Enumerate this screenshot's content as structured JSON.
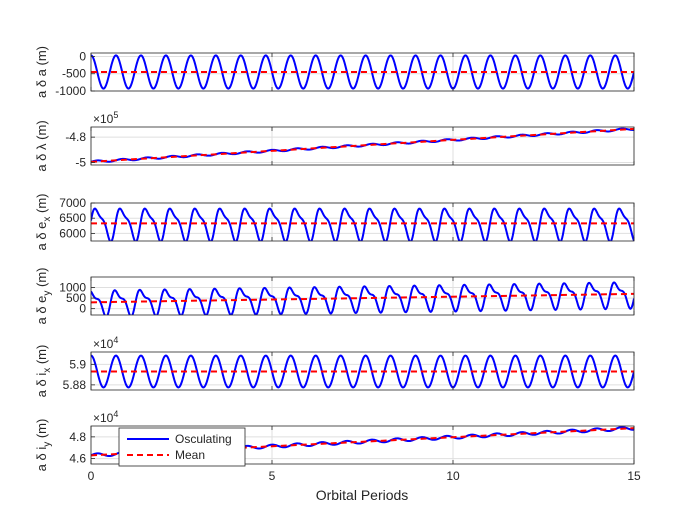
{
  "chart_data": {
    "type": "line",
    "xlabel": "Orbital Periods",
    "xlim": [
      0,
      15
    ],
    "xticks": [
      "0",
      "5",
      "10",
      "15"
    ],
    "grid": true,
    "legend": {
      "placement": "inside-lower-left of bottom panel",
      "entries": [
        {
          "name": "Osculating",
          "color": "#0000ff",
          "style": "solid"
        },
        {
          "name": "Mean",
          "color": "#ff0000",
          "style": "dashed"
        }
      ]
    },
    "panels": [
      {
        "ylabel_parts": [
          "a δ a",
          "",
          " (m)"
        ],
        "ylim": [
          -1000,
          100
        ],
        "yticks": [
          {
            "value": 0,
            "label": "0"
          },
          {
            "value": -500,
            "label": "-500"
          },
          {
            "value": -1000,
            "label": "-1000"
          }
        ],
        "exponent": "",
        "mean": {
          "start": -450,
          "end": -450
        },
        "osc": {
          "amplitude": 480,
          "periods_per_unit": 1.45,
          "second_amp": 0,
          "phase": 1.57
        }
      },
      {
        "ylabel_parts": [
          "a δ λ",
          "",
          " (m)"
        ],
        "ylim": [
          -5.02,
          -4.72
        ],
        "yticks": [
          {
            "value": -4.8,
            "label": "-4.8"
          },
          {
            "value": -5,
            "label": "-5"
          }
        ],
        "exponent": "5",
        "mean": {
          "start": -4.995,
          "end": -4.735
        },
        "osc": {
          "amplitude": 0.008,
          "periods_per_unit": 1.45,
          "second_amp": 0,
          "phase": 0
        }
      },
      {
        "ylabel_parts": [
          "a δ e",
          "x",
          " (m)"
        ],
        "ylim": [
          5750,
          7000
        ],
        "yticks": [
          {
            "value": 7000,
            "label": "7000"
          },
          {
            "value": 6500,
            "label": "6500"
          },
          {
            "value": 6000,
            "label": "6000"
          }
        ],
        "exponent": "",
        "mean": {
          "start": 6330,
          "end": 6330
        },
        "osc": {
          "amplitude": 480,
          "periods_per_unit": 1.45,
          "second_amp": 160,
          "phase": 0
        }
      },
      {
        "ylabel_parts": [
          "a δ e",
          "y",
          " (m)"
        ],
        "ylim": [
          -300,
          1500
        ],
        "yticks": [
          {
            "value": 1000,
            "label": "1000"
          },
          {
            "value": 500,
            "label": "500"
          },
          {
            "value": 0,
            "label": "0"
          }
        ],
        "exponent": "",
        "mean": {
          "start": 300,
          "end": 700
        },
        "osc": {
          "amplitude": 520,
          "periods_per_unit": 1.45,
          "second_amp": 220,
          "phase": 1.2
        }
      },
      {
        "ylabel_parts": [
          "a δ i",
          "x",
          " (m)"
        ],
        "ylim": [
          5.875,
          5.912
        ],
        "yticks": [
          {
            "value": 5.9,
            "label": "5.9"
          },
          {
            "value": 5.88,
            "label": "5.88"
          }
        ],
        "exponent": "4",
        "mean": {
          "start": 5.893,
          "end": 5.893
        },
        "osc": {
          "amplitude": 0.0155,
          "periods_per_unit": 1.45,
          "second_amp": 0,
          "phase": 1.57
        }
      },
      {
        "ylabel_parts": [
          "a δ i",
          "y",
          " (m)"
        ],
        "ylim": [
          4.55,
          4.9
        ],
        "yticks": [
          {
            "value": 4.8,
            "label": "4.8"
          },
          {
            "value": 4.6,
            "label": "4.6"
          }
        ],
        "exponent": "4",
        "mean": {
          "start": 4.63,
          "end": 4.88
        },
        "osc": {
          "amplitude": 0.015,
          "periods_per_unit": 1.45,
          "second_amp": 0,
          "phase": 0
        }
      }
    ]
  }
}
